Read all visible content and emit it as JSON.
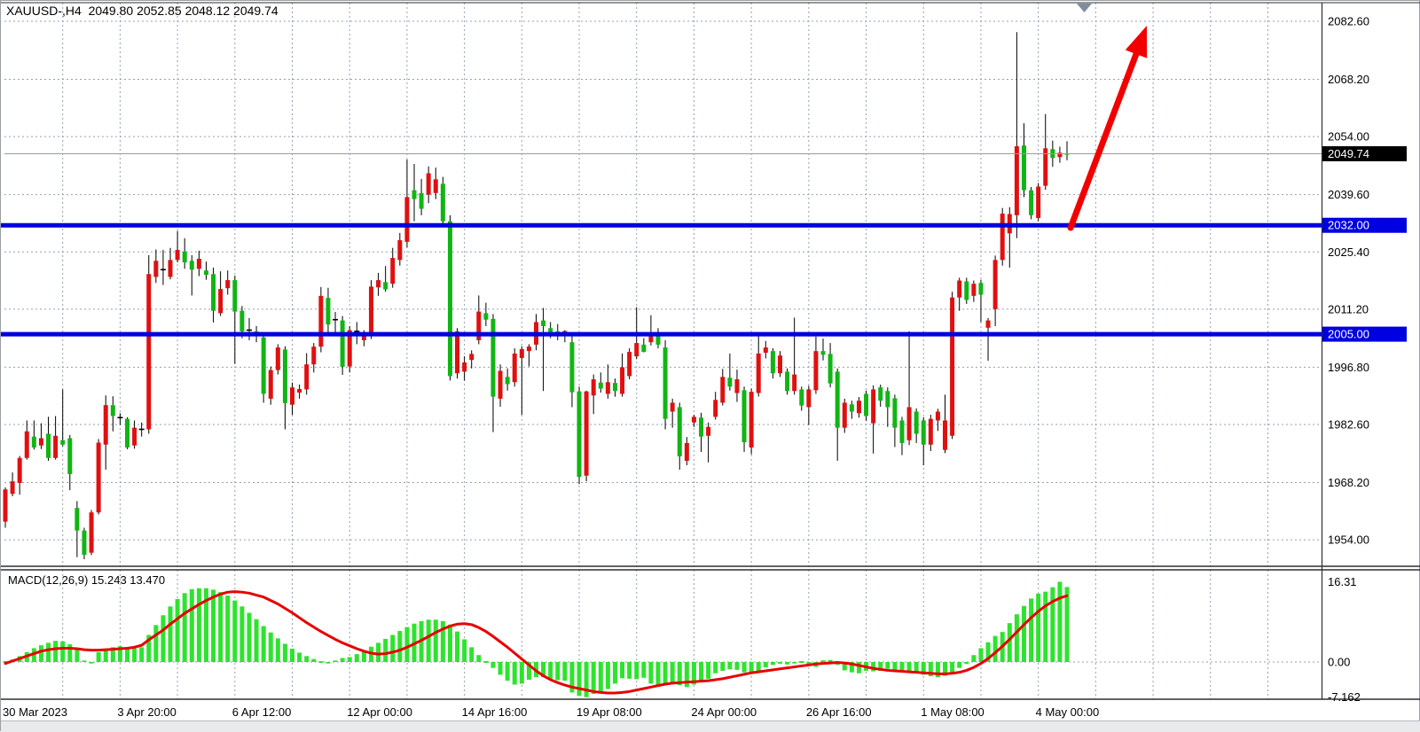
{
  "window": {
    "title_full": "XAUUSD-,H4  2049.80 2052.85 2048.12 2049.74",
    "symbol": "XAUUSD-",
    "period": "H4",
    "ohlc": {
      "open": "2049.80",
      "high": "2052.85",
      "low": "2048.12",
      "close": "2049.74"
    }
  },
  "indicator_label": {
    "full": "MACD(12,26,9) 15.243 13.470",
    "name_params": "MACD(12,26,9)",
    "main_value": "15.243",
    "signal_value": "13.470"
  },
  "colors": {
    "bull_candle": "#e01010",
    "bear_candle": "#10b514",
    "wick": "#000000",
    "macd_hist": "#2ee32e",
    "macd_signal": "#e80000",
    "level_line": "#0000e0",
    "current_line": "#9a9a9a",
    "current_badge_bg": "#000000",
    "badge_text": "#ffffff",
    "grid": "#93a0b2",
    "axis_text": "#000000",
    "arrow": "#f20000",
    "shift_marker": "#7f8c9e",
    "panel_border": "#2e2e2e"
  },
  "price_axis": {
    "labels": [
      {
        "text": "2082.60",
        "value": 2082.6
      },
      {
        "text": "2068.20",
        "value": 2068.2
      },
      {
        "text": "2054.00",
        "value": 2054.0
      },
      {
        "text": "2039.60",
        "value": 2039.6
      },
      {
        "text": "2025.40",
        "value": 2025.4
      },
      {
        "text": "2011.20",
        "value": 2011.2
      },
      {
        "text": "1996.80",
        "value": 1996.8
      },
      {
        "text": "1982.60",
        "value": 1982.6
      },
      {
        "text": "1968.20",
        "value": 1968.2
      },
      {
        "text": "1954.00",
        "value": 1954.0
      }
    ],
    "current": {
      "text": "2049.74",
      "value": 2049.74
    },
    "levels": [
      {
        "text": "2032.00",
        "value": 2032.0
      },
      {
        "text": "2005.00",
        "value": 2005.0
      }
    ]
  },
  "macd_axis": {
    "labels": [
      {
        "text": "16.31",
        "value": 16.31
      },
      {
        "text": "0.00",
        "value": 0.0
      },
      {
        "text": "-7.162",
        "value": -7.162
      }
    ]
  },
  "time_axis": {
    "labels": [
      "30 Mar 2023",
      "3 Apr 20:00",
      "6 Apr 12:00",
      "12 Apr 00:00",
      "14 Apr 16:00",
      "19 Apr 08:00",
      "24 Apr 00:00",
      "26 Apr 16:00",
      "1 May 08:00",
      "4 May 00:00"
    ],
    "bars_per_label": 16,
    "bars_per_gridline": 8
  },
  "chart_data": {
    "type": "candlestick",
    "symbol": "XAUUSD-",
    "period": "H4",
    "note_color_convention": "red = up candle, green = down candle",
    "price_axis_top": 2082.6,
    "price_axis_step": 14.4,
    "horizontal_levels": [
      2032.0,
      2005.0
    ],
    "current_price": 2049.74,
    "candles": [
      [
        1958.5,
        1967.0,
        1957.0,
        1966.5
      ],
      [
        1965.4,
        1970.7,
        1964.8,
        1968.5
      ],
      [
        1968.1,
        1974.8,
        1965.2,
        1974.3
      ],
      [
        1974.3,
        1983.6,
        1973.9,
        1980.9
      ],
      [
        1979.6,
        1983.6,
        1976.4,
        1976.9
      ],
      [
        1977.4,
        1982.9,
        1976.5,
        1979.2
      ],
      [
        1980.3,
        1984.5,
        1973.6,
        1974.3
      ],
      [
        1974.3,
        1984.7,
        1973.9,
        1979.8
      ],
      [
        1978.7,
        1991.3,
        1977.2,
        1977.6
      ],
      [
        1979.2,
        1980.0,
        1966.3,
        1970.3
      ],
      [
        1961.9,
        1963.6,
        1949.7,
        1956.3
      ],
      [
        1956.3,
        1957.0,
        1949.2,
        1950.3
      ],
      [
        1950.8,
        1961.4,
        1950.2,
        1960.8
      ],
      [
        1960.8,
        1979.0,
        1960.3,
        1978.1
      ],
      [
        1977.6,
        1989.8,
        1971.4,
        1987.4
      ],
      [
        1987.4,
        1989.6,
        1980.9,
        1984.7
      ],
      [
        1984.3,
        1985.4,
        1982.5,
        1984.3
      ],
      [
        1984.0,
        1984.4,
        1976.5,
        1976.9
      ],
      [
        1977.4,
        1983.6,
        1976.6,
        1981.8
      ],
      [
        1981.4,
        1983.1,
        1979.6,
        1981.4
      ],
      [
        1981.4,
        2024.6,
        1980.3,
        2019.9
      ],
      [
        2019.2,
        2026.0,
        2017.7,
        2023.2
      ],
      [
        2021.0,
        2025.9,
        2017.2,
        2021.0
      ],
      [
        2019.2,
        2026.4,
        2018.6,
        2023.4
      ],
      [
        2023.4,
        2030.6,
        2022.8,
        2025.9
      ],
      [
        2025.5,
        2028.8,
        2021.2,
        2022.8
      ],
      [
        2023.2,
        2024.6,
        2014.6,
        2021.0
      ],
      [
        2021.2,
        2025.7,
        2019.4,
        2023.7
      ],
      [
        2020.8,
        2023.0,
        2018.5,
        2019.7
      ],
      [
        2019.9,
        2021.5,
        2007.9,
        2010.8
      ],
      [
        2010.2,
        2020.6,
        2009.5,
        2016.2
      ],
      [
        2016.4,
        2020.8,
        2014.8,
        2018.4
      ],
      [
        2018.4,
        2019.5,
        1997.6,
        2010.6
      ],
      [
        2010.8,
        2012.0,
        2004.0,
        2005.7
      ],
      [
        2006.0,
        2009.0,
        2003.5,
        2006.0
      ],
      [
        2005.7,
        2007.0,
        2003.0,
        2004.8
      ],
      [
        2004.2,
        2005.0,
        1988.0,
        1990.2
      ],
      [
        1989.0,
        1997.0,
        1987.5,
        1996.1
      ],
      [
        1996.1,
        2002.5,
        1995.0,
        2001.7
      ],
      [
        2001.2,
        2002.0,
        1981.4,
        1987.9
      ],
      [
        1987.5,
        1993.0,
        1985.0,
        1991.8
      ],
      [
        1990.5,
        1992.5,
        1989.0,
        1991.4
      ],
      [
        1991.3,
        2000.3,
        1990.0,
        1997.5
      ],
      [
        1997.5,
        2002.8,
        1995.5,
        2001.9
      ],
      [
        2001.9,
        2016.7,
        2000.5,
        2014.5
      ],
      [
        2014.0,
        2016.5,
        2005.5,
        2007.4
      ],
      [
        2008.6,
        2010.5,
        2004.5,
        2008.6
      ],
      [
        2008.4,
        2009.5,
        1994.9,
        1996.9
      ],
      [
        1997.0,
        2007.0,
        1995.5,
        2006.0
      ],
      [
        2005.7,
        2008.0,
        2002.5,
        2005.7
      ],
      [
        2003.5,
        2006.0,
        2002.0,
        2004.6
      ],
      [
        2004.6,
        2018.4,
        2003.8,
        2016.8
      ],
      [
        2016.6,
        2020.2,
        2014.5,
        2018.4
      ],
      [
        2017.9,
        2021.9,
        2015.5,
        2016.1
      ],
      [
        2017.5,
        2026.4,
        2016.5,
        2023.9
      ],
      [
        2023.4,
        2030.1,
        2022.0,
        2028.3
      ],
      [
        2027.9,
        2048.3,
        2026.5,
        2039.0
      ],
      [
        2040.7,
        2047.2,
        2033.0,
        2038.5
      ],
      [
        2040.0,
        2043.5,
        2034.5,
        2036.1
      ],
      [
        2039.6,
        2046.6,
        2037.5,
        2044.9
      ],
      [
        2040.0,
        2046.3,
        2038.5,
        2043.4
      ],
      [
        2042.3,
        2044.0,
        2031.5,
        2033.0
      ],
      [
        2033.0,
        2034.5,
        1993.5,
        1994.6
      ],
      [
        1995.3,
        2006.5,
        1994.0,
        2005.7
      ],
      [
        1995.7,
        1999.5,
        1993.5,
        1998.0
      ],
      [
        1998.6,
        2001.0,
        1996.5,
        2000.1
      ],
      [
        2003.5,
        2014.6,
        2002.5,
        2010.6
      ],
      [
        2010.2,
        2012.8,
        2007.0,
        2008.6
      ],
      [
        2008.8,
        2010.0,
        1980.7,
        1989.5
      ],
      [
        1989.0,
        1997.5,
        1987.0,
        1995.9
      ],
      [
        1994.4,
        1996.5,
        1991.0,
        1992.6
      ],
      [
        1993.1,
        2001.5,
        1992.0,
        2000.2
      ],
      [
        1999.1,
        2002.0,
        1985.0,
        2001.3
      ],
      [
        2000.8,
        2002.5,
        1997.0,
        2001.9
      ],
      [
        2002.4,
        2010.0,
        2001.0,
        2008.0
      ],
      [
        2008.4,
        2011.5,
        1990.9,
        2007.0
      ],
      [
        2006.5,
        2008.0,
        2004.0,
        2005.5
      ],
      [
        2005.7,
        2007.5,
        2003.5,
        2005.0
      ],
      [
        2004.8,
        2006.0,
        2003.0,
        2005.8
      ],
      [
        2003.0,
        2004.5,
        1986.9,
        1990.6
      ],
      [
        1990.8,
        1992.0,
        1967.8,
        1969.6
      ],
      [
        1969.9,
        1991.0,
        1968.5,
        1990.8
      ],
      [
        1989.8,
        1995.0,
        1985.2,
        1993.8
      ],
      [
        1993.0,
        1995.5,
        1990.5,
        1991.5
      ],
      [
        1990.2,
        1997.5,
        1989.0,
        1993.1
      ],
      [
        1992.9,
        1994.0,
        1989.5,
        1990.9
      ],
      [
        1990.2,
        2000.2,
        1989.5,
        1996.8
      ],
      [
        1994.6,
        2001.5,
        1993.8,
        2000.6
      ],
      [
        1999.5,
        2011.7,
        1998.8,
        2002.8
      ],
      [
        2002.4,
        2004.0,
        2000.5,
        2000.6
      ],
      [
        2003.0,
        2009.7,
        2002.2,
        2004.8
      ],
      [
        2004.8,
        2006.5,
        2001.5,
        2002.4
      ],
      [
        2001.7,
        2003.5,
        1981.4,
        1984.0
      ],
      [
        1985.8,
        1989.0,
        1981.8,
        1988.0
      ],
      [
        1986.9,
        1988.0,
        1971.4,
        1974.7
      ],
      [
        1973.6,
        1979.5,
        1972.5,
        1978.0
      ],
      [
        1983.1,
        1985.0,
        1982.0,
        1984.5
      ],
      [
        1984.3,
        1985.5,
        1975.8,
        1979.6
      ],
      [
        1979.8,
        1983.1,
        1973.2,
        1982.0
      ],
      [
        1984.5,
        1990.7,
        1983.8,
        1988.7
      ],
      [
        1988.0,
        1996.4,
        1987.3,
        1994.4
      ],
      [
        1994.2,
        2000.2,
        1991.0,
        1992.0
      ],
      [
        1990.4,
        1996.2,
        1988.2,
        1993.8
      ],
      [
        1991.1,
        1992.0,
        1975.8,
        1978.2
      ],
      [
        1976.9,
        1991.5,
        1975.2,
        1990.7
      ],
      [
        1990.4,
        2004.6,
        1989.5,
        2000.2
      ],
      [
        2000.4,
        2003.3,
        1999.0,
        2001.7
      ],
      [
        2000.8,
        2001.5,
        1994.0,
        1995.3
      ],
      [
        1995.3,
        2000.8,
        1994.4,
        1999.7
      ],
      [
        1995.7,
        1996.5,
        1990.0,
        1990.9
      ],
      [
        1990.9,
        2009.1,
        1990.0,
        1995.0
      ],
      [
        1991.3,
        1992.0,
        1986.0,
        1987.3
      ],
      [
        1986.9,
        1992.2,
        1982.5,
        1991.3
      ],
      [
        1991.1,
        2004.4,
        1990.2,
        2000.8
      ],
      [
        2000.8,
        2003.9,
        1998.5,
        1999.9
      ],
      [
        2000.1,
        2002.8,
        1991.8,
        1992.8
      ],
      [
        1995.7,
        1996.5,
        1973.6,
        1981.8
      ],
      [
        1981.8,
        1989.0,
        1980.5,
        1988.0
      ],
      [
        1987.6,
        1988.5,
        1984.0,
        1985.8
      ],
      [
        1985.4,
        1989.4,
        1984.3,
        1988.5
      ],
      [
        1990.2,
        1991.0,
        1983.5,
        1984.7
      ],
      [
        1982.9,
        1992.3,
        1975.4,
        1991.3
      ],
      [
        1991.8,
        1992.5,
        1987.0,
        1988.5
      ],
      [
        1990.9,
        1991.8,
        1982.0,
        1986.9
      ],
      [
        1989.1,
        1990.0,
        1977.0,
        1981.8
      ],
      [
        1983.6,
        1984.5,
        1975.0,
        1978.0
      ],
      [
        1978.7,
        2005.7,
        1977.5,
        1986.9
      ],
      [
        1985.8,
        1986.6,
        1978.0,
        1980.3
      ],
      [
        1983.6,
        1984.4,
        1972.5,
        1977.6
      ],
      [
        1977.6,
        1985.0,
        1976.0,
        1984.0
      ],
      [
        1983.6,
        1986.5,
        1981.0,
        1985.8
      ],
      [
        1976.3,
        1990.0,
        1975.5,
        1983.6
      ],
      [
        1979.8,
        2015.5,
        1979.0,
        2014.1
      ],
      [
        2014.1,
        2019.0,
        2010.8,
        2018.3
      ],
      [
        2018.1,
        2019.0,
        2012.5,
        2013.5
      ],
      [
        2014.5,
        2018.3,
        2013.0,
        2017.5
      ],
      [
        2017.7,
        2018.5,
        2008.0,
        2014.8
      ],
      [
        2006.6,
        2009.0,
        1998.4,
        2008.4
      ],
      [
        2011.2,
        2024.5,
        2007.0,
        2023.4
      ],
      [
        2023.4,
        2036.3,
        2022.0,
        2034.9
      ],
      [
        2030.0,
        2036.5,
        2021.5,
        2034.8
      ],
      [
        2034.5,
        2079.9,
        2028.8,
        2051.6
      ],
      [
        2051.8,
        2057.3,
        2039.0,
        2040.7
      ],
      [
        2040.7,
        2041.5,
        2033.5,
        2034.5
      ],
      [
        2033.8,
        2042.5,
        2033.0,
        2041.6
      ],
      [
        2041.8,
        2059.6,
        2040.8,
        2051.1
      ],
      [
        2050.9,
        2053.0,
        2046.5,
        2048.7
      ],
      [
        2048.9,
        2051.5,
        2047.5,
        2050.0
      ],
      [
        2049.8,
        2052.85,
        2048.12,
        2049.74
      ]
    ],
    "macd": {
      "type": "bar+line",
      "params": "12,26,9",
      "last_main": 15.243,
      "last_signal": 13.47,
      "axis_max": 16.31,
      "axis_min": -7.162,
      "hist": [
        0.2,
        0.5,
        1.2,
        2.0,
        2.8,
        3.4,
        3.9,
        4.3,
        4.2,
        3.6,
        2.8,
        0.3,
        -0.3,
        2.0,
        2.6,
        3.0,
        3.2,
        3.0,
        2.8,
        3.0,
        5.5,
        7.5,
        9.5,
        11.3,
        12.8,
        14.0,
        14.8,
        15.0,
        15.0,
        14.7,
        14.2,
        13.5,
        12.5,
        11.3,
        10.0,
        8.7,
        7.3,
        6.0,
        4.8,
        3.7,
        2.7,
        1.9,
        1.2,
        0.6,
        0.2,
        -0.3,
        0.3,
        0.8,
        1.0,
        1.6,
        2.3,
        3.1,
        3.9,
        4.7,
        5.5,
        6.3,
        7.1,
        7.8,
        8.3,
        8.6,
        8.6,
        8.3,
        7.6,
        6.2,
        4.6,
        3.0,
        1.4,
        0.2,
        -1.2,
        -2.6,
        -3.8,
        -4.6,
        -4.4,
        -3.6,
        -3.1,
        -3.1,
        -3.4,
        -3.7,
        -3.8,
        -6.2,
        -6.9,
        -7.16,
        -6.5,
        -6.0,
        -5.5,
        -4.4,
        -3.3,
        -3.4,
        -3.5,
        -3.2,
        -4.4,
        -5.0,
        -4.4,
        -4.3,
        -4.7,
        -5.1,
        -4.6,
        -4.1,
        -3.4,
        -2.3,
        -1.8,
        -1.5,
        -1.6,
        -2.1,
        -2.4,
        -1.8,
        -1.1,
        -0.6,
        -0.35,
        -0.5,
        -0.3,
        -0.2,
        -0.7,
        -1.0,
        0.35,
        0.4,
        -0.6,
        -1.7,
        -2.1,
        -2.3,
        -1.8,
        -1.9,
        -1.8,
        -1.4,
        -1.6,
        -1.9,
        -2.2,
        -2.3,
        -2.6,
        -2.9,
        -3.1,
        -2.8,
        -2.2,
        -1.2,
        -0.4,
        1.4,
        2.8,
        4.0,
        5.3,
        6.1,
        7.9,
        9.7,
        11.4,
        12.9,
        13.9,
        14.3,
        15.2,
        16.31,
        15.243
      ],
      "signal": [
        -0.3,
        0.2,
        0.7,
        1.2,
        1.7,
        2.2,
        2.5,
        2.7,
        2.8,
        2.8,
        2.7,
        2.5,
        2.4,
        2.4,
        2.5,
        2.6,
        2.7,
        2.8,
        3.0,
        3.4,
        4.5,
        5.5,
        6.5,
        7.7,
        8.8,
        9.9,
        10.8,
        11.7,
        12.5,
        13.2,
        13.8,
        14.2,
        14.3,
        14.2,
        14.0,
        13.6,
        13.2,
        12.5,
        11.8,
        10.9,
        10.0,
        9.0,
        8.0,
        7.1,
        6.2,
        5.4,
        4.6,
        3.9,
        3.3,
        2.7,
        2.2,
        1.8,
        1.6,
        1.7,
        2.0,
        2.4,
        3.0,
        3.7,
        4.4,
        5.2,
        6.0,
        6.7,
        7.3,
        7.7,
        7.8,
        7.6,
        7.0,
        6.2,
        5.2,
        4.1,
        3.0,
        1.8,
        0.6,
        -0.6,
        -1.8,
        -2.8,
        -3.6,
        -4.2,
        -4.7,
        -5.1,
        -5.4,
        -5.7,
        -6.0,
        -6.2,
        -6.3,
        -6.3,
        -6.2,
        -6.0,
        -5.7,
        -5.4,
        -5.1,
        -4.8,
        -4.5,
        -4.3,
        -4.2,
        -4.1,
        -4.0,
        -3.9,
        -3.8,
        -3.6,
        -3.4,
        -3.1,
        -2.8,
        -2.5,
        -2.2,
        -2.0,
        -1.8,
        -1.6,
        -1.4,
        -1.2,
        -1.0,
        -0.8,
        -0.6,
        -0.4,
        -0.3,
        -0.2,
        -0.1,
        -0.2,
        -0.4,
        -0.7,
        -1.0,
        -1.3,
        -1.5,
        -1.7,
        -1.8,
        -1.9,
        -2.0,
        -2.1,
        -2.2,
        -2.3,
        -2.4,
        -2.4,
        -2.3,
        -2.1,
        -1.7,
        -1.1,
        -0.3,
        0.7,
        1.9,
        3.2,
        4.6,
        6.1,
        7.6,
        9.0,
        10.3,
        11.4,
        12.3,
        13.0,
        13.47
      ]
    },
    "annotations": {
      "arrow": {
        "shape": "up-right red arrow",
        "from_price": 2032.0,
        "near_last_bar": true
      },
      "shift_marker": "gray down-triangle at top of chart"
    }
  }
}
